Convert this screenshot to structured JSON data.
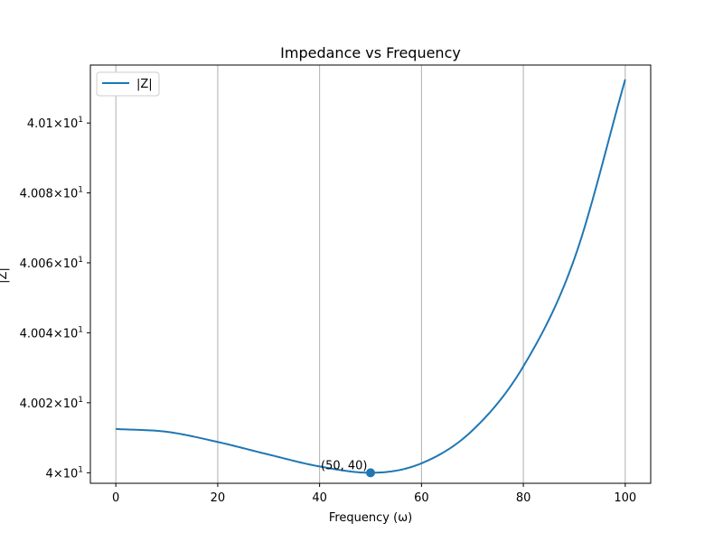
{
  "chart_data": {
    "type": "line",
    "title": "Impedance vs Frequency",
    "xlabel": "Frequency (ω)",
    "ylabel": "|Z|",
    "xlim": [
      -5,
      105
    ],
    "ylim": [
      39.997,
      40.1166
    ],
    "y_scale": "log",
    "grid": "x-only",
    "legend_position": "top-left",
    "x_ticks": [
      {
        "value": 0,
        "label": "0"
      },
      {
        "value": 20,
        "label": "20"
      },
      {
        "value": 40,
        "label": "40"
      },
      {
        "value": 60,
        "label": "60"
      },
      {
        "value": 80,
        "label": "80"
      },
      {
        "value": 100,
        "label": "100"
      }
    ],
    "y_ticks": [
      {
        "value": 40.0,
        "mantissa": "4",
        "base": "10",
        "exp": "1"
      },
      {
        "value": 40.02,
        "mantissa": "4.002",
        "base": "10",
        "exp": "1"
      },
      {
        "value": 40.04,
        "mantissa": "4.004",
        "base": "10",
        "exp": "1"
      },
      {
        "value": 40.06,
        "mantissa": "4.006",
        "base": "10",
        "exp": "1"
      },
      {
        "value": 40.08,
        "mantissa": "4.008",
        "base": "10",
        "exp": "1"
      },
      {
        "value": 40.1,
        "mantissa": "4.01",
        "base": "10",
        "exp": "1"
      }
    ],
    "series": [
      {
        "name": "|Z|",
        "color": "#1f77b4",
        "x": [
          0,
          10,
          20,
          30,
          40,
          50,
          60,
          70,
          80,
          90,
          100
        ],
        "y": [
          40.0125,
          40.0117,
          40.0088,
          40.0052,
          40.0018,
          40.0,
          40.0027,
          40.0121,
          40.0304,
          40.0611,
          40.1125
        ]
      }
    ],
    "marker": {
      "x": 50,
      "y": 40,
      "label": "(50, 40)",
      "color": "#1f77b4"
    }
  }
}
